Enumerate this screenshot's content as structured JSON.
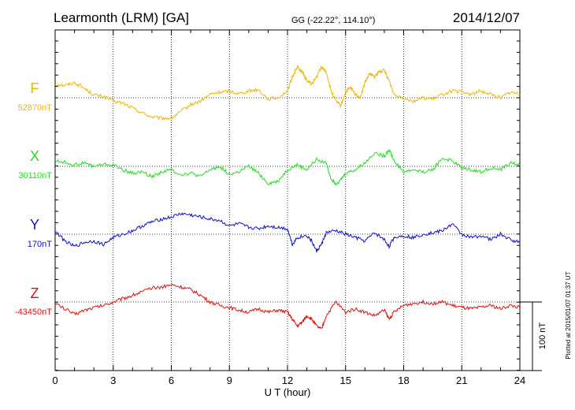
{
  "header": {
    "title": "Learmonth (LRM)  [GA]",
    "coords": "GG (-22.22°, 114.10°)",
    "date": "2014/12/07"
  },
  "side_note": "Plotted at 2015/01/07 01:37 UT",
  "chart_data": {
    "type": "line",
    "xlabel": "U T (hour)",
    "xlim": [
      0,
      24
    ],
    "xticks": [
      "0",
      "3",
      "6",
      "9",
      "12",
      "15",
      "18",
      "21",
      "24"
    ],
    "scale_bar": {
      "label": "100 nT",
      "value": 100
    },
    "series": [
      {
        "name": "F",
        "baseline_label": "52870nT",
        "baseline": 52870,
        "color": "#f0b400",
        "x": [
          0,
          0.5,
          1,
          1.5,
          2,
          2.5,
          3,
          3.5,
          4,
          4.5,
          5,
          5.5,
          6,
          6.5,
          7,
          7.5,
          8,
          8.5,
          9,
          9.5,
          10,
          10.5,
          11,
          11.5,
          12,
          12.25,
          12.5,
          12.75,
          13,
          13.25,
          13.5,
          13.75,
          14,
          14.25,
          14.5,
          14.75,
          15,
          15.25,
          15.5,
          15.75,
          16,
          16.25,
          16.5,
          16.75,
          17,
          17.25,
          17.5,
          18,
          18.5,
          19,
          19.5,
          20,
          20.5,
          21,
          21.5,
          22,
          22.5,
          23,
          23.5,
          24
        ],
        "values": [
          20,
          18,
          22,
          14,
          4,
          2,
          -5,
          -8,
          -15,
          -22,
          -28,
          -30,
          -30,
          -20,
          -10,
          -5,
          5,
          8,
          10,
          6,
          10,
          12,
          -2,
          0,
          10,
          30,
          45,
          38,
          25,
          20,
          30,
          45,
          38,
          10,
          -5,
          -12,
          8,
          15,
          5,
          0,
          22,
          35,
          30,
          38,
          40,
          25,
          5,
          0,
          -5,
          0,
          -2,
          5,
          10,
          8,
          5,
          10,
          5,
          0,
          8,
          5
        ]
      },
      {
        "name": "X",
        "baseline_label": "30110nT",
        "baseline": 30110,
        "color": "#22dd22",
        "x": [
          0,
          0.5,
          1,
          1.5,
          2,
          2.5,
          3,
          3.5,
          4,
          4.5,
          5,
          5.5,
          6,
          6.5,
          7,
          7.5,
          8,
          8.5,
          9,
          9.5,
          10,
          10.5,
          11,
          11.5,
          12,
          12.5,
          13,
          13.5,
          14,
          14.25,
          14.5,
          14.75,
          15,
          15.5,
          16,
          16.5,
          17,
          17.25,
          17.5,
          18,
          18.5,
          19,
          19.5,
          20,
          20.5,
          21,
          21.5,
          22,
          22.5,
          23,
          23.5,
          24
        ],
        "values": [
          8,
          6,
          2,
          5,
          0,
          3,
          2,
          -5,
          -10,
          -8,
          -15,
          -8,
          -5,
          -12,
          -10,
          -15,
          -5,
          0,
          -12,
          -8,
          0,
          -10,
          -25,
          -22,
          -5,
          2,
          -5,
          10,
          5,
          -18,
          -25,
          -20,
          -10,
          -5,
          5,
          20,
          15,
          25,
          8,
          -8,
          -5,
          -8,
          -5,
          12,
          8,
          -2,
          -5,
          -8,
          -2,
          -5,
          5,
          2
        ]
      },
      {
        "name": "Y",
        "baseline_label": "170nT",
        "baseline": 170,
        "color": "#1010cc",
        "x": [
          0,
          0.5,
          1,
          1.5,
          2,
          2.5,
          3,
          3.5,
          4,
          4.5,
          5,
          5.5,
          6,
          6.5,
          7,
          7.5,
          8,
          8.5,
          9,
          9.5,
          10,
          10.5,
          11,
          11.5,
          12,
          12.25,
          12.5,
          13,
          13.25,
          13.5,
          13.75,
          14,
          14.5,
          15,
          15.5,
          16,
          16.5,
          17,
          17.25,
          17.5,
          18,
          18.5,
          19,
          19.5,
          20,
          20.5,
          21,
          21.5,
          22,
          22.5,
          23,
          23.5,
          24
        ],
        "values": [
          5,
          -10,
          -18,
          -12,
          -10,
          -15,
          -5,
          0,
          5,
          12,
          18,
          22,
          25,
          30,
          28,
          25,
          22,
          20,
          12,
          15,
          10,
          8,
          12,
          10,
          8,
          -15,
          -5,
          -2,
          -10,
          -25,
          -15,
          2,
          5,
          0,
          -5,
          -10,
          2,
          -8,
          -18,
          -5,
          -2,
          -5,
          0,
          2,
          5,
          15,
          0,
          -5,
          -2,
          -8,
          0,
          -8,
          -12
        ]
      },
      {
        "name": "Z",
        "baseline_label": "-43450nT",
        "baseline": -43450,
        "color": "#dd1111",
        "x": [
          0,
          0.5,
          1,
          1.5,
          2,
          2.5,
          3,
          3.5,
          4,
          4.5,
          5,
          5.5,
          6,
          6.5,
          7,
          7.5,
          8,
          8.5,
          9,
          9.5,
          10,
          10.5,
          11,
          11.5,
          12,
          12.25,
          12.5,
          12.75,
          13,
          13.25,
          13.5,
          13.75,
          14,
          14.5,
          15,
          15.5,
          16,
          16.5,
          17,
          17.25,
          17.5,
          18,
          18.5,
          19,
          19.5,
          20,
          20.5,
          21,
          21.5,
          22,
          22.5,
          23,
          23.5,
          24
        ],
        "values": [
          -2,
          -10,
          -18,
          -12,
          -8,
          -5,
          0,
          5,
          10,
          15,
          20,
          22,
          25,
          22,
          18,
          10,
          0,
          -5,
          -8,
          -12,
          -15,
          -10,
          -15,
          -12,
          -15,
          -25,
          -35,
          -30,
          -20,
          -25,
          -35,
          -40,
          -20,
          0,
          -15,
          -10,
          -15,
          -20,
          -12,
          -25,
          -15,
          -5,
          -2,
          0,
          -2,
          0,
          -5,
          -8,
          -10,
          -8,
          -5,
          -10,
          -5,
          -8
        ]
      }
    ]
  }
}
